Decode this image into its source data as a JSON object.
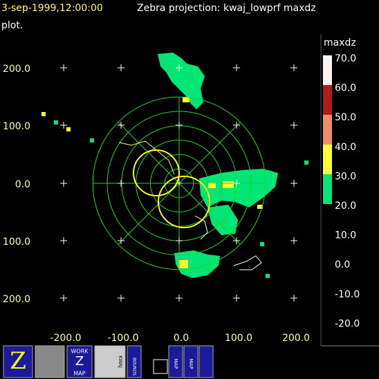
{
  "header": {
    "time": "3-sep-1999,12:00:00",
    "title": "Zebra projection: kwaj_lowprf maxdz",
    "title_cont": "plot."
  },
  "plot": {
    "x_labels": [
      "-200.0",
      "-100.0",
      "0.0",
      "100.0",
      "200.0"
    ],
    "y_labels": [
      "200.0",
      "100.0",
      "0.0",
      "100.0",
      "200.0"
    ]
  },
  "colorbar": {
    "title": "maxdz",
    "labels": [
      "70.0",
      "60.0",
      "50.0",
      "40.0",
      "30.0",
      "20.0",
      "10.0",
      "0.0",
      "-10.0",
      "-20.0"
    ]
  },
  "icons": {
    "work_top": "WORK",
    "work_mid": "Z",
    "work_bottom": "MAP",
    "kwaj": "KWAJ",
    "bounds": "BOUNDS",
    "map1": "MAP",
    "map2": "MAP"
  }
}
